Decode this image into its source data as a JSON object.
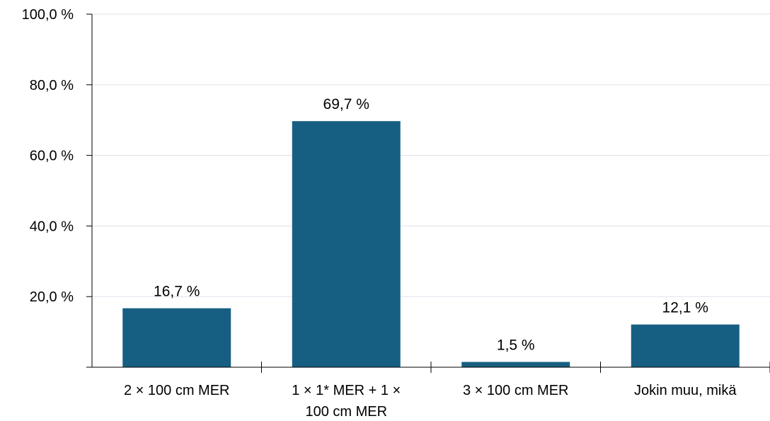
{
  "chart_data": {
    "type": "bar",
    "categories": [
      "2 × 100 cm MER",
      "1 × 1* MER + 1 × 100 cm MER",
      "3 × 100 cm MER",
      "Jokin muu, mikä"
    ],
    "category_lines": [
      [
        "2 × 100 cm MER"
      ],
      [
        "1 × 1* MER + 1 ×",
        "100 cm MER"
      ],
      [
        "3 × 100 cm MER"
      ],
      [
        "Jokin muu, mikä"
      ]
    ],
    "values": [
      16.7,
      69.7,
      1.5,
      12.1
    ],
    "data_labels": [
      "16,7 %",
      "69,7 %",
      "1,5 %",
      "12,1 %"
    ],
    "ylim": [
      0,
      100
    ],
    "yticks": [
      20,
      40,
      60,
      80,
      100
    ],
    "ytick_labels": [
      "20,0 %",
      "40,0 %",
      "60,0 %",
      "80,0 %",
      "100,0 %"
    ],
    "grid": true,
    "legend": "none",
    "title": "",
    "xlabel": "",
    "ylabel": "",
    "colors": {
      "bar": "#175f82",
      "grid": "#dde3ea",
      "axis": "#000000"
    }
  }
}
